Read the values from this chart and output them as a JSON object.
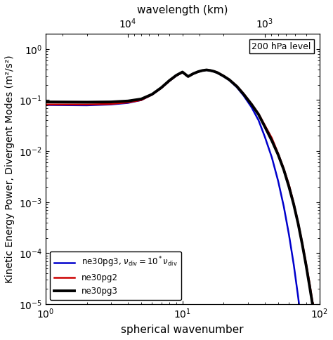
{
  "title": "",
  "xlabel_bottom": "spherical wavenumber",
  "xlabel_top": "wavelength (km)",
  "ylabel": "Kinetic Energy Power, Divergent Modes (m²/s²)",
  "annotation": "200 hPa level",
  "xlim": [
    1,
    100
  ],
  "ylim": [
    1e-05,
    2
  ],
  "x_bottom": [
    1,
    2,
    3,
    4,
    5,
    6,
    7,
    8,
    9,
    10,
    11,
    12,
    13,
    14,
    15,
    16,
    17,
    18,
    20,
    22,
    25,
    28,
    32,
    36,
    40,
    45,
    50,
    55,
    60,
    65,
    70,
    75,
    80,
    85,
    90,
    95,
    100
  ],
  "y_ne30pg3": [
    0.092,
    0.091,
    0.092,
    0.096,
    0.105,
    0.13,
    0.175,
    0.24,
    0.305,
    0.355,
    0.29,
    0.33,
    0.36,
    0.38,
    0.39,
    0.38,
    0.365,
    0.345,
    0.295,
    0.25,
    0.185,
    0.13,
    0.082,
    0.052,
    0.03,
    0.016,
    0.0085,
    0.0043,
    0.002,
    0.0009,
    0.00038,
    0.00015,
    5.8e-05,
    2.2e-05,
    8.5e-06,
    3.3e-06,
    1.3e-06
  ],
  "y_ne30pg2": [
    0.082,
    0.082,
    0.084,
    0.09,
    0.1,
    0.128,
    0.172,
    0.235,
    0.3,
    0.35,
    0.288,
    0.328,
    0.358,
    0.378,
    0.39,
    0.382,
    0.368,
    0.348,
    0.298,
    0.252,
    0.188,
    0.133,
    0.084,
    0.054,
    0.032,
    0.018,
    0.009,
    0.0045,
    0.0022,
    0.00095,
    0.0004,
    0.00016,
    6.3e-05,
    2.5e-05,
    9.5e-06,
    3.8e-06,
    1.5e-06
  ],
  "y_ne30pg3_10x": [
    0.08,
    0.079,
    0.082,
    0.088,
    0.1,
    0.128,
    0.172,
    0.235,
    0.3,
    0.35,
    0.288,
    0.328,
    0.358,
    0.378,
    0.388,
    0.378,
    0.362,
    0.342,
    0.29,
    0.245,
    0.178,
    0.122,
    0.072,
    0.04,
    0.019,
    0.0075,
    0.0026,
    0.00082,
    0.00023,
    6e-05,
    1.4e-05,
    3.1e-06,
    6.5e-07,
    1.3e-07,
    2.5e-08,
    4.8e-09,
    9e-10
  ],
  "color_ne30pg3": "#000000",
  "color_ne30pg2": "#cc0000",
  "color_ne30pg3_10x": "#0000cc",
  "lw_ne30pg3": 2.8,
  "lw_ne30pg2": 1.8,
  "lw_ne30pg3_10x": 1.8,
  "legend_labels": [
    "ne30pg3",
    "ne30pg2",
    "ne30pg3, $\\nu_{\\rm div} = 10^*\\nu_{\\rm div}$"
  ],
  "bg_color": "#ffffff"
}
